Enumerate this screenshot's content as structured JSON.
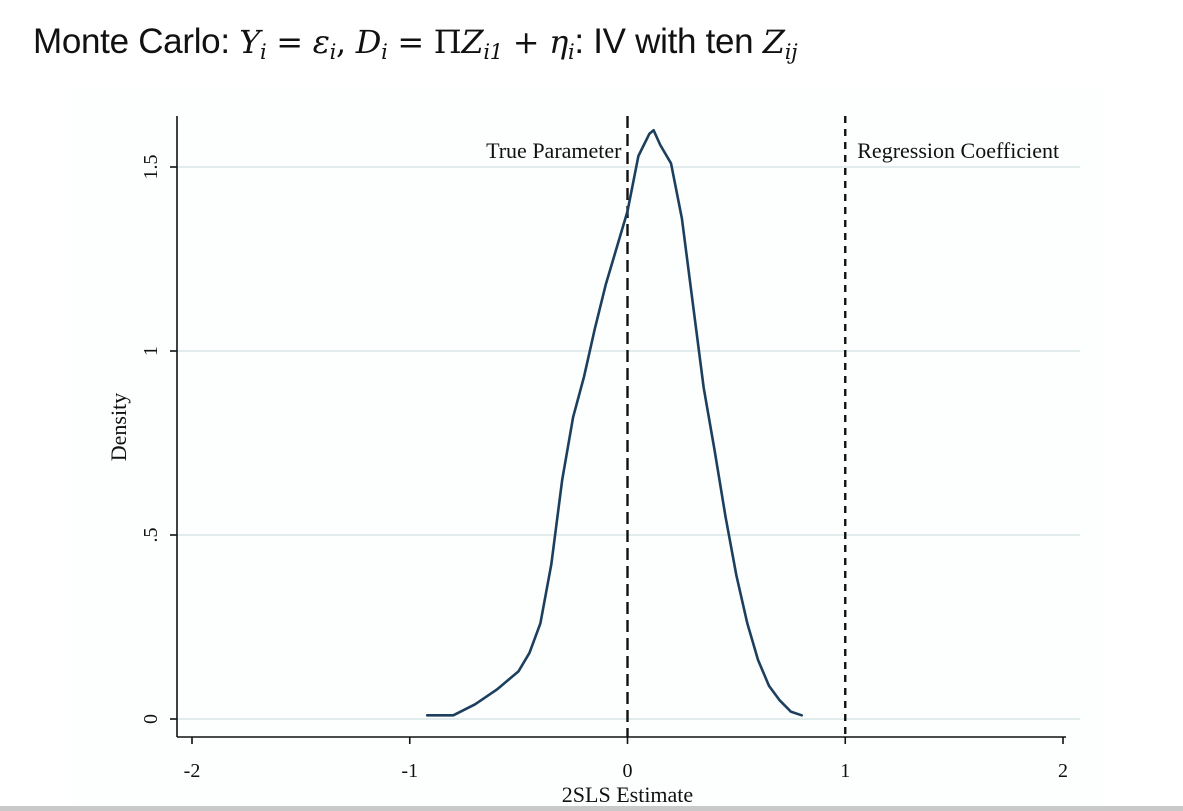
{
  "title": {
    "prefix": "Monte Carlo: ",
    "eq1_lhs": "Y",
    "eq1_lhs_sub": "i",
    "eq1_op": " = ",
    "eq1_rhs": "ε",
    "eq1_rhs_sub": "i",
    "sep": ", ",
    "eq2_lhs": "D",
    "eq2_lhs_sub": "i",
    "eq2_op": " = ",
    "eq2_pi": "Π",
    "eq2_z": "Z",
    "eq2_z_sub": "i1",
    "eq2_plus": " + ",
    "eq2_eta": "η",
    "eq2_eta_sub": "i",
    "middle": ": IV with ten ",
    "z_final": "Z",
    "z_final_sub": "ij"
  },
  "chart_data": {
    "type": "line",
    "xlabel": "2SLS Estimate",
    "ylabel": "Density",
    "xlim": [
      -2,
      2
    ],
    "ylim": [
      0,
      1.5
    ],
    "x_ticks": [
      -2,
      -1,
      0,
      1,
      2
    ],
    "x_tick_labels": [
      "-2",
      "-1",
      "0",
      "1",
      "2"
    ],
    "y_ticks": [
      0,
      0.5,
      1,
      1.5
    ],
    "y_tick_labels": [
      "0",
      ".5",
      "1",
      "1.5"
    ],
    "grid": "horizontal",
    "line_color": "#1c3f5e",
    "series": [
      {
        "x": [
          -0.92,
          -0.8,
          -0.7,
          -0.6,
          -0.5,
          -0.45,
          -0.4,
          -0.35,
          -0.3,
          -0.25,
          -0.2,
          -0.15,
          -0.1,
          -0.05,
          0.0,
          0.05,
          0.1,
          0.12,
          0.15,
          0.2,
          0.25,
          0.3,
          0.35,
          0.4,
          0.45,
          0.5,
          0.55,
          0.6,
          0.65,
          0.7,
          0.75,
          0.8
        ],
        "y": [
          0.01,
          0.01,
          0.04,
          0.08,
          0.13,
          0.18,
          0.26,
          0.42,
          0.65,
          0.82,
          0.93,
          1.06,
          1.18,
          1.28,
          1.38,
          1.53,
          1.59,
          1.6,
          1.56,
          1.51,
          1.36,
          1.13,
          0.9,
          0.73,
          0.55,
          0.39,
          0.26,
          0.16,
          0.09,
          0.05,
          0.02,
          0.01
        ]
      }
    ],
    "reference_lines": [
      {
        "x": 0,
        "label": "True Parameter",
        "style": "long-dash",
        "label_side": "left"
      },
      {
        "x": 1,
        "label": "Regression Coefficient",
        "style": "short-dash",
        "label_side": "right"
      }
    ]
  }
}
